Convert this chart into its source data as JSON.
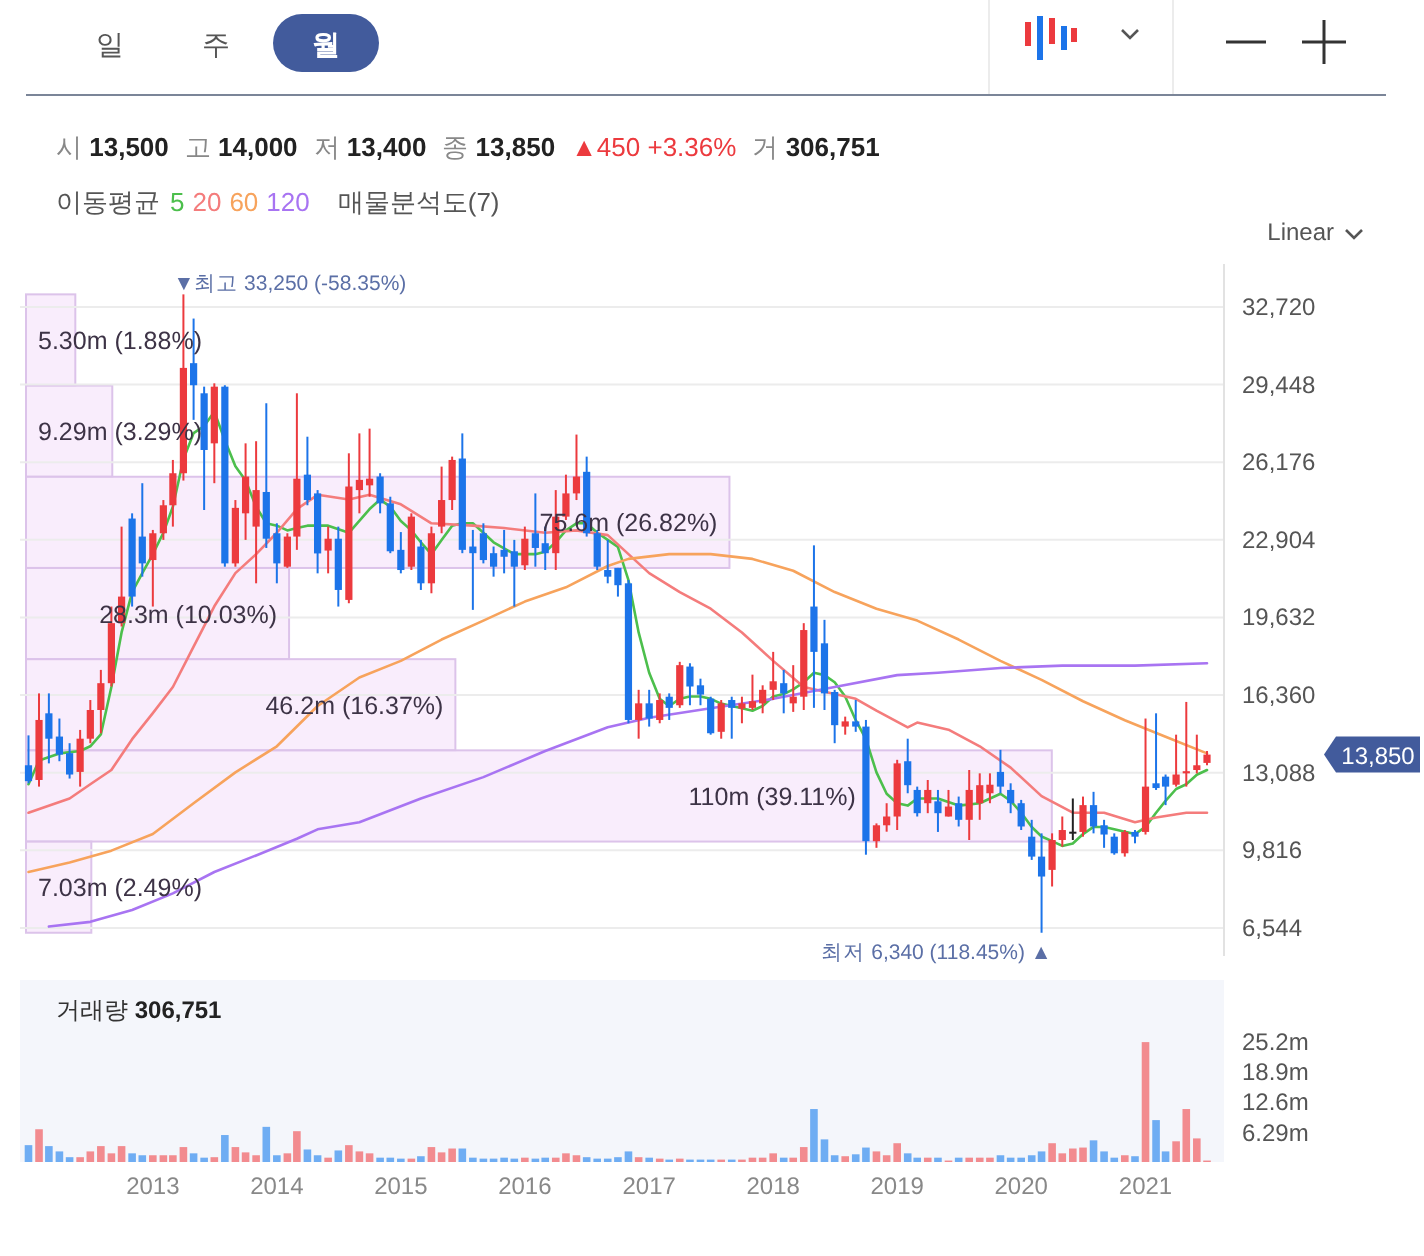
{
  "chart_data": [
    {
      "type": "candlestick",
      "x": [
        "2012-01",
        "2012-02",
        "2012-03",
        "2012-04",
        "2012-05",
        "2012-06",
        "2012-07",
        "2012-08",
        "2012-09",
        "2012-10",
        "2012-11",
        "2012-12",
        "2013-01",
        "2013-02",
        "2013-03",
        "2013-04",
        "2013-05",
        "2013-06",
        "2013-07",
        "2013-08",
        "2013-09",
        "2013-10",
        "2013-11",
        "2013-12",
        "2014-01",
        "2014-02",
        "2014-03",
        "2014-04",
        "2014-05",
        "2014-06",
        "2014-07",
        "2014-08",
        "2014-09",
        "2014-10",
        "2014-11",
        "2014-12",
        "2015-01",
        "2015-02",
        "2015-03",
        "2015-04",
        "2015-05",
        "2015-06",
        "2015-07",
        "2015-08",
        "2015-09",
        "2015-10",
        "2015-11",
        "2015-12",
        "2016-01",
        "2016-02",
        "2016-03",
        "2016-04",
        "2016-05",
        "2016-06",
        "2016-07",
        "2016-08",
        "2016-09",
        "2016-10",
        "2016-11",
        "2016-12",
        "2017-01",
        "2017-02",
        "2017-03",
        "2017-04",
        "2017-05",
        "2017-06",
        "2017-07",
        "2017-08",
        "2017-09",
        "2017-10",
        "2017-11",
        "2017-12",
        "2018-01",
        "2018-02",
        "2018-03",
        "2018-04",
        "2018-05",
        "2018-06",
        "2018-07",
        "2018-08",
        "2018-09",
        "2018-10",
        "2018-11",
        "2018-12",
        "2019-01",
        "2019-02",
        "2019-03",
        "2019-04",
        "2019-05",
        "2019-06",
        "2019-07",
        "2019-08",
        "2019-09",
        "2019-10",
        "2019-11",
        "2019-12",
        "2020-01",
        "2020-02",
        "2020-03",
        "2020-04",
        "2020-05",
        "2020-06",
        "2020-07",
        "2020-08",
        "2020-09",
        "2020-10",
        "2020-11",
        "2020-12",
        "2021-01",
        "2021-02",
        "2021-03",
        "2021-04",
        "2021-05",
        "2021-06",
        "2021-07"
      ],
      "ohlc": [
        [
          13400,
          14660,
          12640,
          12730
        ],
        [
          12780,
          16430,
          12500,
          15310
        ],
        [
          15590,
          16430,
          13480,
          14520
        ],
        [
          14610,
          15370,
          13570,
          13850
        ],
        [
          13910,
          14330,
          12840,
          13010
        ],
        [
          13120,
          14890,
          12500,
          14520
        ],
        [
          14520,
          16150,
          14330,
          15730
        ],
        [
          15730,
          17420,
          14750,
          16860
        ],
        [
          16860,
          20090,
          16720,
          19390
        ],
        [
          19390,
          23460,
          19250,
          20510
        ],
        [
          23800,
          24020,
          20090,
          20510
        ],
        [
          23040,
          25290,
          21350,
          21910
        ],
        [
          22050,
          23320,
          20090,
          23180
        ],
        [
          23180,
          24580,
          22900,
          24360
        ],
        [
          24360,
          26270,
          23460,
          25710
        ],
        [
          25710,
          33250,
          25400,
          30150
        ],
        [
          30350,
          32230,
          27960,
          29420
        ],
        [
          29080,
          29360,
          24160,
          26690
        ],
        [
          26970,
          29500,
          25290,
          29360
        ],
        [
          29360,
          29420,
          21770,
          21910
        ],
        [
          21910,
          24580,
          21770,
          24250
        ],
        [
          24020,
          26970,
          22900,
          25570
        ],
        [
          23460,
          27060,
          21070,
          25000
        ],
        [
          24920,
          28660,
          22560,
          22950
        ],
        [
          23180,
          23600,
          21070,
          21910
        ],
        [
          21770,
          23180,
          21720,
          23040
        ],
        [
          23040,
          29080,
          22480,
          25480
        ],
        [
          25650,
          27250,
          24360,
          24580
        ],
        [
          24860,
          25000,
          21490,
          22330
        ],
        [
          22450,
          23460,
          21490,
          22950
        ],
        [
          22950,
          23460,
          20090,
          20790
        ],
        [
          20370,
          26550,
          20230,
          25150
        ],
        [
          25000,
          27390,
          24020,
          25430
        ],
        [
          25200,
          27590,
          24720,
          25480
        ],
        [
          25570,
          25710,
          24020,
          24440
        ],
        [
          24440,
          24720,
          22340,
          22420
        ],
        [
          22480,
          23230,
          21490,
          21630
        ],
        [
          21770,
          24020,
          21630,
          23880
        ],
        [
          22620,
          22900,
          20790,
          21070
        ],
        [
          21070,
          23460,
          20650,
          23180
        ],
        [
          23460,
          25990,
          23180,
          24580
        ],
        [
          24580,
          26410,
          24160,
          26270
        ],
        [
          26330,
          27390,
          22340,
          22480
        ],
        [
          22620,
          23320,
          19950,
          22340
        ],
        [
          23180,
          23600,
          21910,
          22050
        ],
        [
          22340,
          22620,
          21350,
          21770
        ],
        [
          22480,
          23320,
          21490,
          22190
        ],
        [
          22420,
          22900,
          20090,
          21770
        ],
        [
          21830,
          23460,
          21630,
          22950
        ],
        [
          23180,
          24860,
          21770,
          22560
        ],
        [
          22760,
          23460,
          21630,
          22340
        ],
        [
          22340,
          25000,
          21630,
          23880
        ],
        [
          23880,
          25650,
          23740,
          24860
        ],
        [
          24860,
          27340,
          24580,
          25570
        ],
        [
          25770,
          26410,
          23040,
          23180
        ],
        [
          23180,
          23320,
          21630,
          21770
        ],
        [
          21630,
          22900,
          21070,
          21350
        ],
        [
          21720,
          21720,
          20510,
          20990
        ],
        [
          21070,
          21210,
          15170,
          15310
        ],
        [
          15310,
          16580,
          14520,
          16010
        ],
        [
          16010,
          16580,
          15030,
          15370
        ],
        [
          15310,
          16430,
          15170,
          16150
        ],
        [
          16290,
          16430,
          15310,
          15820
        ],
        [
          15930,
          17760,
          15820,
          17620
        ],
        [
          17560,
          17700,
          15930,
          16720
        ],
        [
          16770,
          17050,
          15930,
          16380
        ],
        [
          16210,
          16290,
          14690,
          14750
        ],
        [
          14810,
          16150,
          14520,
          16010
        ],
        [
          16150,
          16290,
          14520,
          15820
        ],
        [
          15790,
          16290,
          15170,
          16010
        ],
        [
          15820,
          17220,
          15730,
          16100
        ],
        [
          16010,
          16770,
          15590,
          16580
        ],
        [
          16580,
          18180,
          16150,
          16940
        ],
        [
          16860,
          17420,
          15590,
          16430
        ],
        [
          16010,
          17620,
          15650,
          16290
        ],
        [
          16290,
          19390,
          15730,
          19100
        ],
        [
          20090,
          22670,
          15820,
          18180
        ],
        [
          18540,
          19530,
          15730,
          16430
        ],
        [
          16490,
          16580,
          14330,
          15090
        ],
        [
          15030,
          15450,
          14690,
          15250
        ],
        [
          15250,
          16150,
          14810,
          15030
        ],
        [
          15030,
          15310,
          9630,
          10200
        ],
        [
          10200,
          10950,
          9920,
          10870
        ],
        [
          10870,
          11800,
          10600,
          11240
        ],
        [
          11240,
          13630,
          10670,
          13480
        ],
        [
          13570,
          14520,
          12220,
          12560
        ],
        [
          12360,
          12500,
          11240,
          11380
        ],
        [
          11800,
          12780,
          11380,
          12360
        ],
        [
          11880,
          12360,
          10590,
          11380
        ],
        [
          11240,
          12360,
          11240,
          11660
        ],
        [
          11800,
          12080,
          10820,
          11100
        ],
        [
          11100,
          13200,
          10250,
          12360
        ],
        [
          11800,
          13060,
          11100,
          12560
        ],
        [
          12220,
          13060,
          11800,
          12580
        ],
        [
          13120,
          14050,
          12220,
          12500
        ],
        [
          12360,
          12640,
          11380,
          11800
        ],
        [
          11800,
          11940,
          10670,
          10820
        ],
        [
          10390,
          11100,
          9410,
          9550
        ],
        [
          9550,
          10530,
          6340,
          8710
        ],
        [
          8990,
          10530,
          8290,
          10250
        ],
        [
          10250,
          11240,
          9970,
          10670
        ],
        [
          10600,
          12000,
          10250,
          10600
        ],
        [
          10590,
          12080,
          10390,
          11720
        ],
        [
          11720,
          12280,
          10530,
          10820
        ],
        [
          10870,
          11100,
          9920,
          10480
        ],
        [
          10390,
          10530,
          9630,
          9690
        ],
        [
          9690,
          10670,
          9550,
          10590
        ],
        [
          10590,
          10670,
          10110,
          10390
        ],
        [
          10590,
          15370,
          10480,
          12500
        ],
        [
          12640,
          15590,
          12360,
          12440
        ],
        [
          12920,
          13010,
          11720,
          12500
        ],
        [
          12580,
          14690,
          12500,
          13010
        ],
        [
          13060,
          16070,
          12500,
          13150
        ],
        [
          13200,
          14690,
          13060,
          13400
        ],
        [
          13500,
          14000,
          13400,
          13850
        ]
      ],
      "colors": [
        "#1c74e9",
        "#ec3a3e",
        "#1c74e9",
        "#1c74e9",
        "#1c74e9",
        "#ec3a3e",
        "#ec3a3e",
        "#ec3a3e",
        "#ec3a3e",
        "#ec3a3e",
        "#1c74e9",
        "#1c74e9",
        "#ec3a3e",
        "#ec3a3e",
        "#ec3a3e",
        "#ec3a3e",
        "#1c74e9",
        "#1c74e9",
        "#ec3a3e",
        "#1c74e9",
        "#ec3a3e",
        "#ec3a3e",
        "#ec3a3e",
        "#1c74e9",
        "#1c74e9",
        "#ec3a3e",
        "#ec3a3e",
        "#1c74e9",
        "#1c74e9",
        "#ec3a3e",
        "#1c74e9",
        "#ec3a3e",
        "#ec3a3e",
        "#ec3a3e",
        "#1c74e9",
        "#1c74e9",
        "#1c74e9",
        "#ec3a3e",
        "#1c74e9",
        "#ec3a3e",
        "#ec3a3e",
        "#ec3a3e",
        "#1c74e9",
        "#1c74e9",
        "#1c74e9",
        "#1c74e9",
        "#1c74e9",
        "#1c74e9",
        "#ec3a3e",
        "#1c74e9",
        "#1c74e9",
        "#ec3a3e",
        "#ec3a3e",
        "#ec3a3e",
        "#1c74e9",
        "#1c74e9",
        "#1c74e9",
        "#1c74e9",
        "#1c74e9",
        "#ec3a3e",
        "#1c74e9",
        "#ec3a3e",
        "#1c74e9",
        "#ec3a3e",
        "#1c74e9",
        "#1c74e9",
        "#1c74e9",
        "#ec3a3e",
        "#1c74e9",
        "#ec3a3e",
        "#ec3a3e",
        "#ec3a3e",
        "#ec3a3e",
        "#1c74e9",
        "#ec3a3e",
        "#ec3a3e",
        "#1c74e9",
        "#1c74e9",
        "#1c74e9",
        "#ec3a3e",
        "#1c74e9",
        "#1c74e9",
        "#ec3a3e",
        "#ec3a3e",
        "#ec3a3e",
        "#1c74e9",
        "#1c74e9",
        "#ec3a3e",
        "#1c74e9",
        "#ec3a3e",
        "#1c74e9",
        "#ec3a3e",
        "#ec3a3e",
        "#ec3a3e",
        "#1c74e9",
        "#1c74e9",
        "#1c74e9",
        "#1c74e9",
        "#1c74e9",
        "#ec3a3e",
        "#ec3a3e",
        "#222222",
        "#ec3a3e",
        "#1c74e9",
        "#1c74e9",
        "#1c74e9",
        "#ec3a3e",
        "#1c74e9",
        "#ec3a3e",
        "#1c74e9",
        "#1c74e9",
        "#ec3a3e",
        "#ec3a3e",
        "#ec3a3e",
        "#ec3a3e"
      ],
      "series": [
        {
          "name": "5",
          "type": "line",
          "color": "#4cbf4c",
          "x": [
            "2012-01",
            "2012-02",
            "2012-04",
            "2012-06",
            "2012-07",
            "2012-08",
            "2012-09",
            "2012-10",
            "2012-11",
            "2012-12",
            "2013-01",
            "2013-02",
            "2013-03",
            "2013-04",
            "2013-05",
            "2013-06",
            "2013-07",
            "2013-08",
            "2013-09",
            "2013-10",
            "2013-11",
            "2013-12",
            "2014-01",
            "2014-02",
            "2014-03",
            "2014-04",
            "2014-05",
            "2014-06",
            "2014-08",
            "2014-10",
            "2014-11",
            "2014-12",
            "2015-01",
            "2015-02",
            "2015-03",
            "2015-04",
            "2015-05",
            "2015-06",
            "2015-07",
            "2015-08",
            "2015-09",
            "2015-10",
            "2015-12",
            "2016-02",
            "2016-03",
            "2016-04",
            "2016-05",
            "2016-06",
            "2016-07",
            "2016-08",
            "2016-09",
            "2016-10",
            "2016-11",
            "2016-12",
            "2017-01",
            "2017-02",
            "2017-03",
            "2017-04",
            "2017-05",
            "2017-06",
            "2017-07",
            "2017-08",
            "2017-09",
            "2017-10",
            "2017-11",
            "2017-12",
            "2018-01",
            "2018-02",
            "2018-03",
            "2018-04",
            "2018-05",
            "2018-06",
            "2018-07",
            "2018-08",
            "2018-09",
            "2018-10",
            "2018-11",
            "2018-12",
            "2019-01",
            "2019-02",
            "2019-03",
            "2019-05",
            "2019-07",
            "2019-09",
            "2019-11",
            "2019-12",
            "2020-01",
            "2020-02",
            "2020-03",
            "2020-04",
            "2020-05",
            "2020-06",
            "2020-07",
            "2020-08",
            "2020-09",
            "2020-10",
            "2020-11",
            "2020-12",
            "2021-01",
            "2021-02",
            "2021-03",
            "2021-04",
            "2021-05",
            "2021-06",
            "2021-07"
          ],
          "values": [
            12600,
            13600,
            13900,
            14000,
            14200,
            14700,
            16700,
            19000,
            20700,
            21500,
            22300,
            23200,
            24300,
            26300,
            27400,
            27700,
            28300,
            27100,
            26000,
            25400,
            24300,
            23600,
            23500,
            23300,
            23400,
            23500,
            23500,
            23500,
            23200,
            24200,
            24600,
            24300,
            23700,
            23300,
            22800,
            22300,
            22900,
            23500,
            23600,
            23600,
            23200,
            22800,
            22300,
            22300,
            22400,
            22800,
            23300,
            23600,
            23600,
            23200,
            22900,
            22600,
            21200,
            19000,
            17300,
            16200,
            15900,
            16200,
            16300,
            16300,
            16200,
            16000,
            15900,
            15800,
            15700,
            15900,
            16300,
            16400,
            16600,
            16900,
            17300,
            17200,
            16900,
            16300,
            15300,
            14500,
            13100,
            12200,
            11800,
            11700,
            12000,
            12000,
            11700,
            11800,
            12200,
            11900,
            11400,
            10800,
            10400,
            10200,
            10000,
            10100,
            10500,
            10800,
            10800,
            10700,
            10600,
            10500,
            10800,
            11400,
            11900,
            12400,
            12600,
            13000,
            13200
          ]
        },
        {
          "name": "20",
          "type": "line",
          "color": "#f47c7c",
          "x": [
            "2012-01",
            "2012-05",
            "2012-07",
            "2012-09",
            "2012-11",
            "2013-01",
            "2013-03",
            "2013-05",
            "2013-07",
            "2013-09",
            "2013-11",
            "2014-01",
            "2014-03",
            "2014-05",
            "2014-08",
            "2014-10",
            "2015-01",
            "2015-04",
            "2015-08",
            "2015-11",
            "2016-03",
            "2016-06",
            "2016-09",
            "2016-11",
            "2017-01",
            "2017-04",
            "2017-07",
            "2017-10",
            "2018-01",
            "2018-04",
            "2018-07",
            "2018-09",
            "2018-11",
            "2019-02",
            "2019-03",
            "2019-06",
            "2019-09",
            "2019-12",
            "2020-03",
            "2020-06",
            "2020-09",
            "2020-12",
            "2021-02",
            "2021-05",
            "2021-07"
          ],
          "values": [
            11400,
            12000,
            12600,
            13200,
            14500,
            15600,
            16700,
            18400,
            20100,
            21500,
            22300,
            23200,
            24200,
            24800,
            24600,
            24800,
            24400,
            23600,
            23500,
            23400,
            23200,
            23300,
            23100,
            22300,
            21500,
            20700,
            20000,
            19000,
            17800,
            16700,
            16400,
            16200,
            15700,
            15000,
            15200,
            14900,
            14200,
            13300,
            12100,
            11400,
            11400,
            11000,
            11200,
            11400,
            11400
          ]
        },
        {
          "name": "60",
          "type": "line",
          "color": "#f7a35c",
          "x": [
            "2012-01",
            "2012-05",
            "2012-09",
            "2013-01",
            "2013-05",
            "2013-09",
            "2014-01",
            "2014-05",
            "2014-09",
            "2015-01",
            "2015-05",
            "2015-09",
            "2016-01",
            "2016-05",
            "2016-09",
            "2016-11",
            "2017-03",
            "2017-07",
            "2017-11",
            "2018-03",
            "2018-07",
            "2018-11",
            "2019-03",
            "2019-07",
            "2019-11",
            "2020-03",
            "2020-07",
            "2020-11",
            "2021-03",
            "2021-07"
          ],
          "values": [
            8900,
            9300,
            9800,
            10500,
            11800,
            13100,
            14200,
            15900,
            17100,
            17800,
            18700,
            19500,
            20300,
            20900,
            21800,
            22100,
            22300,
            22300,
            22100,
            21600,
            20700,
            20000,
            19500,
            18700,
            17800,
            17000,
            16100,
            15300,
            14600,
            13900
          ]
        },
        {
          "name": "120",
          "type": "line",
          "color": "#a874f2",
          "x": [
            "2012-03",
            "2012-07",
            "2012-11",
            "2013-03",
            "2013-07",
            "2013-11",
            "2014-03",
            "2014-05",
            "2014-09",
            "2015-03",
            "2015-09",
            "2016-03",
            "2016-09",
            "2017-01",
            "2017-07",
            "2018-01",
            "2018-07",
            "2019-01",
            "2019-05",
            "2019-11",
            "2020-05",
            "2020-12",
            "2021-07"
          ],
          "values": [
            6600,
            6800,
            7300,
            8000,
            8900,
            9600,
            10300,
            10700,
            11000,
            12000,
            12900,
            14000,
            15000,
            15400,
            15800,
            16200,
            16700,
            17200,
            17300,
            17500,
            17600,
            17600,
            17700
          ]
        }
      ],
      "xlim": [
        "2011-12-07",
        "2021-08-20"
      ],
      "ylim": [
        5360,
        34530
      ],
      "yticks": [
        {
          "value": 6544,
          "label": "6,544"
        },
        {
          "value": 9816,
          "label": "9,816"
        },
        {
          "value": 13088,
          "label": "13,088"
        },
        {
          "value": 16360,
          "label": "16,360"
        },
        {
          "value": 19632,
          "label": "19,632"
        },
        {
          "value": 22904,
          "label": "22,904"
        },
        {
          "value": 26176,
          "label": "26,176"
        },
        {
          "value": 29448,
          "label": "29,448"
        },
        {
          "value": 32720,
          "label": "32,720"
        }
      ],
      "tick_labels": "y",
      "grid": "y",
      "legend": "top left",
      "legend_title": "이동평균",
      "annotations": [
        "시 13,500",
        "고 14,000",
        "저 13,400",
        "종 13,850",
        "▲450 +3.36%",
        "거 306,751",
        "13,850",
        {
          "text": "▼최고 33,250 (-58.35%)",
          "x": "2013-04",
          "y": 33250
        },
        {
          "text": "최저 6,340 (118.45%) ▲",
          "x": "2020-03",
          "y": 6340
        },
        "일",
        "주",
        "월",
        "Linear"
      ]
    },
    {
      "type": "bar",
      "orientation": "horizontal",
      "title": "매물분석도(7)",
      "categories": [
        null,
        null,
        null,
        null,
        null,
        null,
        null
      ],
      "values": [
        1.88,
        3.29,
        26.82,
        10.03,
        16.37,
        39.11,
        2.49
      ],
      "value_labels": [
        "5.30m (1.88%)",
        "9.29m (3.29%)",
        "75.6m (26.82%)",
        "28.3m (10.03%)",
        "46.2m (16.37%)",
        "110m (39.11%)",
        "7.03m (2.49%)"
      ],
      "color": "#f6e6fb"
    },
    {
      "type": "bar",
      "title": "거래량 306,751",
      "x": [
        "2012-01",
        "2012-02",
        "2012-03",
        "2012-04",
        "2012-05",
        "2012-06",
        "2012-07",
        "2012-08",
        "2012-09",
        "2012-10",
        "2012-11",
        "2012-12",
        "2013-01",
        "2013-02",
        "2013-03",
        "2013-04",
        "2013-05",
        "2013-06",
        "2013-07",
        "2013-08",
        "2013-09",
        "2013-10",
        "2013-11",
        "2013-12",
        "2014-01",
        "2014-02",
        "2014-03",
        "2014-04",
        "2014-05",
        "2014-06",
        "2014-07",
        "2014-08",
        "2014-09",
        "2014-10",
        "2014-11",
        "2014-12",
        "2015-01",
        "2015-02",
        "2015-03",
        "2015-04",
        "2015-05",
        "2015-06",
        "2015-07",
        "2015-08",
        "2015-09",
        "2015-10",
        "2015-11",
        "2015-12",
        "2016-01",
        "2016-02",
        "2016-03",
        "2016-04",
        "2016-05",
        "2016-06",
        "2016-07",
        "2016-08",
        "2016-09",
        "2016-10",
        "2016-11",
        "2016-12",
        "2017-01",
        "2017-02",
        "2017-03",
        "2017-04",
        "2017-05",
        "2017-06",
        "2017-07",
        "2017-08",
        "2017-09",
        "2017-10",
        "2017-11",
        "2017-12",
        "2018-01",
        "2018-02",
        "2018-03",
        "2018-04",
        "2018-05",
        "2018-06",
        "2018-07",
        "2018-08",
        "2018-09",
        "2018-10",
        "2018-11",
        "2018-12",
        "2019-01",
        "2019-02",
        "2019-03",
        "2019-04",
        "2019-05",
        "2019-06",
        "2019-07",
        "2019-08",
        "2019-09",
        "2019-10",
        "2019-11",
        "2019-12",
        "2020-01",
        "2020-02",
        "2020-03",
        "2020-04",
        "2020-05",
        "2020-06",
        "2020-07",
        "2020-08",
        "2020-09",
        "2020-10",
        "2020-11",
        "2020-12",
        "2021-01",
        "2021-02",
        "2021-03",
        "2021-04",
        "2021-05",
        "2021-06",
        "2021-07"
      ],
      "values": [
        3.5,
        6.8,
        3.3,
        2.2,
        1.0,
        1.0,
        2.2,
        3.3,
        1.8,
        3.3,
        1.8,
        1.4,
        1.4,
        1.4,
        1.4,
        3.1,
        1.8,
        0.9,
        1.0,
        5.6,
        3.1,
        2.0,
        1.4,
        7.3,
        1.4,
        1.8,
        6.4,
        2.6,
        1.4,
        0.9,
        2.4,
        3.5,
        2.2,
        1.8,
        0.9,
        0.9,
        0.7,
        0.7,
        1.2,
        3.1,
        2.0,
        2.8,
        2.8,
        0.9,
        0.7,
        0.7,
        0.9,
        0.7,
        0.9,
        0.7,
        0.9,
        0.9,
        1.8,
        1.4,
        1.0,
        0.7,
        0.7,
        1.0,
        2.2,
        1.0,
        0.9,
        0.7,
        0.5,
        0.7,
        0.5,
        0.5,
        0.5,
        0.5,
        0.5,
        0.5,
        0.9,
        0.9,
        1.8,
        0.9,
        0.9,
        3.1,
        11.0,
        4.7,
        1.4,
        1.2,
        1.6,
        3.0,
        2.2,
        1.4,
        3.9,
        1.8,
        0.9,
        0.9,
        0.9,
        0.3,
        0.9,
        0.9,
        0.9,
        0.9,
        1.4,
        0.9,
        0.9,
        1.4,
        2.2,
        3.9,
        1.8,
        2.8,
        3.0,
        4.5,
        2.2,
        0.9,
        1.4,
        1.2,
        24.9,
        8.7,
        2.2,
        4.3,
        11.0,
        4.9,
        0.3
      ],
      "colors": [
        "#6fadf3",
        "#f28b8f",
        "#6fadf3",
        "#6fadf3",
        "#6fadf3",
        "#f28b8f",
        "#f28b8f",
        "#f28b8f",
        "#f28b8f",
        "#f28b8f",
        "#6fadf3",
        "#6fadf3",
        "#f28b8f",
        "#f28b8f",
        "#f28b8f",
        "#f28b8f",
        "#6fadf3",
        "#6fadf3",
        "#f28b8f",
        "#6fadf3",
        "#f28b8f",
        "#f28b8f",
        "#f28b8f",
        "#6fadf3",
        "#6fadf3",
        "#f28b8f",
        "#f28b8f",
        "#6fadf3",
        "#6fadf3",
        "#f28b8f",
        "#6fadf3",
        "#f28b8f",
        "#f28b8f",
        "#f28b8f",
        "#6fadf3",
        "#6fadf3",
        "#6fadf3",
        "#f28b8f",
        "#6fadf3",
        "#f28b8f",
        "#f28b8f",
        "#f28b8f",
        "#6fadf3",
        "#6fadf3",
        "#6fadf3",
        "#6fadf3",
        "#6fadf3",
        "#6fadf3",
        "#f28b8f",
        "#6fadf3",
        "#6fadf3",
        "#f28b8f",
        "#f28b8f",
        "#f28b8f",
        "#6fadf3",
        "#6fadf3",
        "#6fadf3",
        "#6fadf3",
        "#6fadf3",
        "#f28b8f",
        "#6fadf3",
        "#f28b8f",
        "#6fadf3",
        "#f28b8f",
        "#6fadf3",
        "#6fadf3",
        "#6fadf3",
        "#f28b8f",
        "#6fadf3",
        "#f28b8f",
        "#f28b8f",
        "#f28b8f",
        "#f28b8f",
        "#6fadf3",
        "#f28b8f",
        "#f28b8f",
        "#6fadf3",
        "#6fadf3",
        "#6fadf3",
        "#f28b8f",
        "#6fadf3",
        "#6fadf3",
        "#f28b8f",
        "#f28b8f",
        "#f28b8f",
        "#6fadf3",
        "#6fadf3",
        "#f28b8f",
        "#6fadf3",
        "#f28b8f",
        "#6fadf3",
        "#f28b8f",
        "#f28b8f",
        "#f28b8f",
        "#6fadf3",
        "#6fadf3",
        "#6fadf3",
        "#6fadf3",
        "#6fadf3",
        "#f28b8f",
        "#f28b8f",
        "#f28b8f",
        "#f28b8f",
        "#6fadf3",
        "#6fadf3",
        "#6fadf3",
        "#f28b8f",
        "#6fadf3",
        "#f28b8f",
        "#6fadf3",
        "#6fadf3",
        "#f28b8f",
        "#f28b8f",
        "#f28b8f",
        "#f28b8f"
      ],
      "xlim": [
        "2011-12-07",
        "2021-08-20"
      ],
      "xticks": [
        "2013",
        "2014",
        "2015",
        "2016",
        "2017",
        "2018",
        "2019",
        "2020",
        "2021"
      ],
      "ylim": [
        0,
        37.8
      ],
      "yticks": [
        {
          "value": 6.29,
          "label": "6.29m"
        },
        {
          "value": 12.6,
          "label": "12.6m"
        },
        {
          "value": 18.9,
          "label": "18.9m"
        },
        {
          "value": 25.2,
          "label": "25.2m"
        }
      ]
    }
  ]
}
